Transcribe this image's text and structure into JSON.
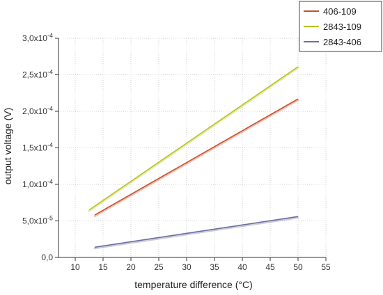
{
  "chart_data": {
    "type": "line",
    "title": "",
    "xlabel": "temperature difference (°C)",
    "ylabel": "output voltage (V)",
    "xlim": [
      7,
      55
    ],
    "ylim": [
      0,
      0.0003
    ],
    "x_ticks": [
      10,
      15,
      20,
      25,
      30,
      35,
      40,
      45,
      50,
      55
    ],
    "x_tick_labels": [
      "10",
      "15",
      "20",
      "25",
      "30",
      "35",
      "40",
      "45",
      "50",
      "55"
    ],
    "y_ticks": [
      0,
      5e-05,
      0.0001,
      0.00015,
      0.0002,
      0.00025,
      0.0003
    ],
    "y_tick_labels": [
      {
        "base": "0,0",
        "exp": ""
      },
      {
        "base": "5,0x10",
        "exp": "-5"
      },
      {
        "base": "1,0x10",
        "exp": "-4"
      },
      {
        "base": "1,5x10",
        "exp": "-4"
      },
      {
        "base": "2,0x10",
        "exp": "-4"
      },
      {
        "base": "2,5x10",
        "exp": "-4"
      },
      {
        "base": "3,0x10",
        "exp": "-4"
      }
    ],
    "grid": true,
    "legend_position": "top-right",
    "series": [
      {
        "name": "406-109",
        "color": "#c8502a",
        "x": [
          13.5,
          50
        ],
        "y": [
          5.8e-05,
          0.000217
        ]
      },
      {
        "name": "2843-109",
        "color": "#b8c420",
        "x": [
          12.5,
          50
        ],
        "y": [
          6.5e-05,
          0.000261
        ]
      },
      {
        "name": "2843-406",
        "color": "#6d6ea0",
        "x": [
          13.5,
          50
        ],
        "y": [
          1.4e-05,
          5.6e-05
        ]
      }
    ]
  }
}
